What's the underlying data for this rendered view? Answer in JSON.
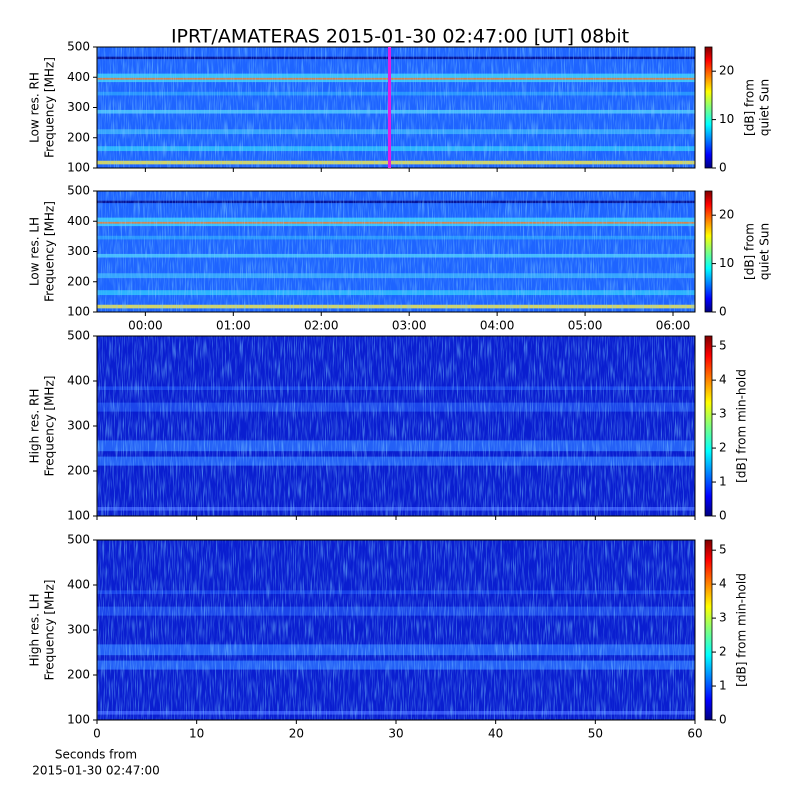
{
  "chart_data": [
    {
      "type": "heatmap",
      "title": "IPRT/AMATERAS 2015-01-30 02:47:00 [UT]   08bit",
      "ylabel": [
        "Low res. RH",
        "Frequency [MHz]"
      ],
      "ylim": [
        100,
        500
      ],
      "yticks": [
        100,
        200,
        300,
        400,
        500
      ],
      "xlim": [
        -0.55,
        6.25
      ],
      "xticks": [
        0,
        1,
        2,
        3,
        4,
        5,
        6
      ],
      "xticklabels": false,
      "colormap": "jet",
      "clim": [
        0,
        25
      ],
      "cticks": [
        0,
        10,
        20
      ],
      "clabel": [
        "[dB] from",
        "quiet Sun"
      ]
    },
    {
      "type": "heatmap",
      "ylabel": [
        "Low res. LH",
        "Frequency [MHz]"
      ],
      "ylim": [
        100,
        500
      ],
      "yticks": [
        100,
        200,
        300,
        400,
        500
      ],
      "xlim": [
        -0.55,
        6.25
      ],
      "xticks": [
        {
          "value": 0,
          "label": "00:00"
        },
        {
          "value": 1,
          "label": "01:00"
        },
        {
          "value": 2,
          "label": "02:00"
        },
        {
          "value": 3,
          "label": "03:00"
        },
        {
          "value": 4,
          "label": "04:00"
        },
        {
          "value": 5,
          "label": "05:00"
        },
        {
          "value": 6,
          "label": "06:00"
        }
      ],
      "colormap": "jet",
      "clim": [
        0,
        25
      ],
      "cticks": [
        0,
        10,
        20
      ],
      "clabel": [
        "[dB] from",
        "quiet Sun"
      ]
    },
    {
      "type": "heatmap",
      "ylabel": [
        "High res. RH",
        "Frequency [MHz]"
      ],
      "ylim": [
        100,
        500
      ],
      "yticks": [
        100,
        200,
        300,
        400,
        500
      ],
      "xlim": [
        0,
        60
      ],
      "xticks": [
        0,
        10,
        20,
        30,
        40,
        50,
        60
      ],
      "xticklabels": false,
      "colormap": "jet",
      "clim": [
        0,
        5.3
      ],
      "cticks": [
        0,
        1,
        2,
        3,
        4,
        5
      ],
      "clabel": [
        "[dB] from min-hold"
      ]
    },
    {
      "type": "heatmap",
      "ylabel": [
        "High res. LH",
        "Frequency [MHz]"
      ],
      "ylim": [
        100,
        500
      ],
      "yticks": [
        100,
        200,
        300,
        400,
        500
      ],
      "xlim": [
        0,
        60
      ],
      "xticks": [
        0,
        10,
        20,
        30,
        40,
        50,
        60
      ],
      "xlabel": [
        "Seconds from",
        "2015-01-30 02:47:00"
      ],
      "colormap": "jet",
      "clim": [
        0,
        5.3
      ],
      "cticks": [
        0,
        1,
        2,
        3,
        4,
        5
      ],
      "clabel": [
        "[dB] from min-hold"
      ]
    }
  ]
}
